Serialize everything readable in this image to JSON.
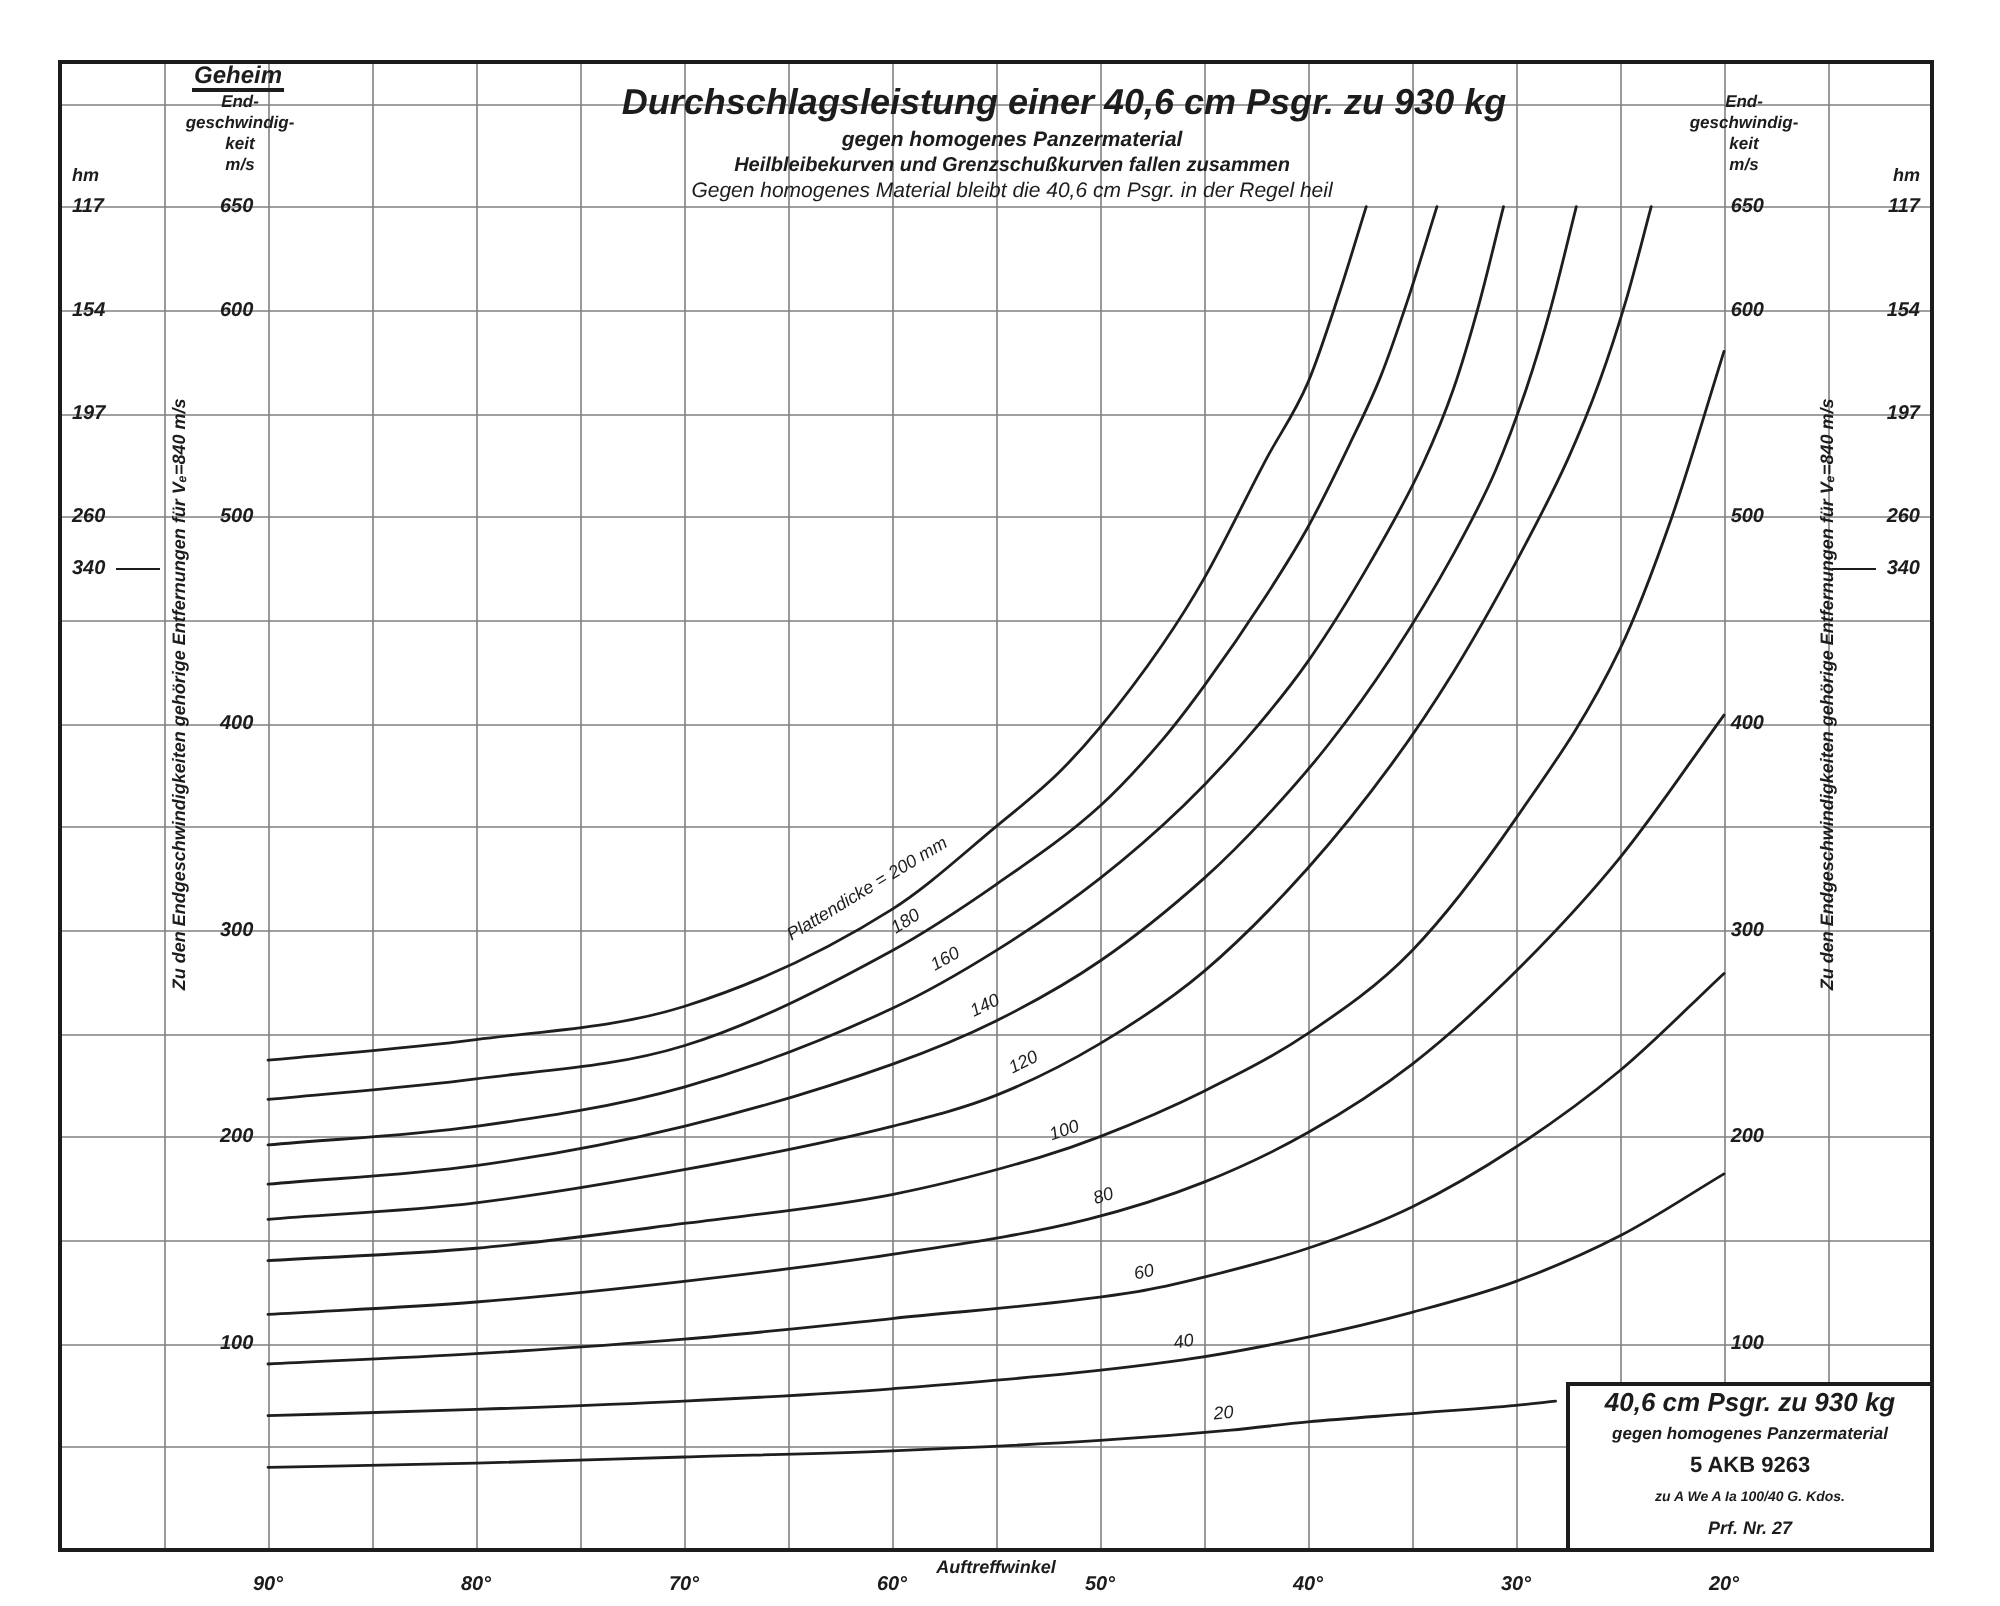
{
  "chart_data": {
    "type": "line",
    "title": "Durchschlagsleistung einer 40,6 cm Psgr. zu 930 kg",
    "subtitle": "gegen homogenes Panzermaterial\nHeilbleibekurven und Grenzschußkurven fallen zusammen\nGegen homogenes Material bleibt die 40,6 cm Psgr. in der Regel heil",
    "xlabel": "Auftreffwinkel",
    "ylabel": "End-\ngeschwindig-\nkeit\nm/s",
    "y2label": "End-\ngeschwindig-\nkeit\nm/s",
    "xlim": [
      100,
      10
    ],
    "xticks": [
      {
        "value": 95,
        "label": null
      },
      {
        "value": 90,
        "label": "90°"
      },
      {
        "value": 85,
        "label": null
      },
      {
        "value": 80,
        "label": "80°"
      },
      {
        "value": 75,
        "label": null
      },
      {
        "value": 70,
        "label": "70°"
      },
      {
        "value": 65,
        "label": null
      },
      {
        "value": 60,
        "label": "60°"
      },
      {
        "value": 55,
        "label": null
      },
      {
        "value": 50,
        "label": "50°"
      },
      {
        "value": 45,
        "label": null
      },
      {
        "value": 40,
        "label": "40°"
      },
      {
        "value": 35,
        "label": null
      },
      {
        "value": 30,
        "label": "30°"
      },
      {
        "value": 25,
        "label": null
      },
      {
        "value": 20,
        "label": "20°"
      },
      {
        "value": 15,
        "label": null
      }
    ],
    "ylim": [
      0,
      720
    ],
    "yticks": [
      {
        "value": 0,
        "label": null
      },
      {
        "value": 50,
        "label": null
      },
      100,
      {
        "value": 150,
        "label": null
      },
      200,
      {
        "value": 250,
        "label": null
      },
      300,
      {
        "value": 350,
        "label": null
      },
      400,
      {
        "value": 450,
        "label": null
      },
      500,
      {
        "value": 550,
        "label": null
      },
      600,
      650,
      {
        "value": 700,
        "label": null
      }
    ],
    "y2lim": [
      0,
      720
    ],
    "y2ticks": [
      100,
      200,
      300,
      400,
      500,
      600,
      650
    ],
    "grid": true,
    "marker": "none",
    "line_style": "solid",
    "series": [
      {
        "name": "Plattendicke = 200 mm",
        "color": "#1e1e1e",
        "x": [
          90,
          80,
          70,
          60,
          55,
          52,
          50,
          47,
          45,
          42,
          40,
          38.5,
          37.2
        ],
        "values": [
          237,
          247,
          263,
          310,
          350,
          376,
          398,
          438,
          470,
          528,
          565,
          608,
          650
        ]
      },
      {
        "name": "180",
        "color": "#1e1e1e",
        "x": [
          90,
          80,
          70,
          60,
          55,
          50,
          47,
          45,
          42,
          40,
          38,
          36.5,
          35.2,
          33.8
        ],
        "values": [
          218,
          228,
          244,
          290,
          322,
          360,
          392,
          418,
          462,
          495,
          535,
          568,
          605,
          650
        ]
      },
      {
        "name": "160",
        "color": "#1e1e1e",
        "x": [
          90,
          80,
          70,
          60,
          55,
          50,
          46,
          43,
          40,
          37,
          34.5,
          33,
          31.8,
          30.6
        ],
        "values": [
          196,
          205,
          224,
          262,
          290,
          325,
          360,
          392,
          430,
          478,
          525,
          562,
          602,
          650
        ]
      },
      {
        "name": "140",
        "color": "#1e1e1e",
        "x": [
          90,
          80,
          70,
          60,
          55,
          50,
          45,
          42,
          39,
          36,
          33,
          31,
          29.5,
          28.3,
          27.1
        ],
        "values": [
          177,
          186,
          205,
          235,
          256,
          285,
          325,
          355,
          390,
          432,
          482,
          522,
          562,
          602,
          650
        ]
      },
      {
        "name": "120",
        "color": "#1e1e1e",
        "x": [
          90,
          80,
          70,
          60,
          55,
          50,
          45,
          40,
          36,
          33,
          30,
          27.5,
          26,
          24.7,
          23.5
        ],
        "values": [
          160,
          168,
          184,
          205,
          220,
          245,
          280,
          330,
          380,
          425,
          478,
          528,
          565,
          605,
          650
        ]
      },
      {
        "name": "100",
        "color": "#1e1e1e",
        "x": [
          90,
          80,
          70,
          60,
          52.9,
          50,
          45,
          40,
          35,
          30,
          25,
          22.5,
          20
        ],
        "values": [
          140,
          146,
          158,
          172,
          190,
          200,
          222,
          250,
          290,
          354,
          436,
          500,
          580
        ]
      },
      {
        "name": "80",
        "color": "#1e1e1e",
        "x": [
          90,
          80,
          70,
          60,
          50.6,
          45,
          40,
          35,
          30,
          25,
          20
        ],
        "values": [
          114,
          120,
          130,
          143,
          160,
          178,
          202,
          235,
          280,
          335,
          404
        ]
      },
      {
        "name": "60",
        "color": "#1e1e1e",
        "x": [
          90,
          80,
          70,
          60,
          48.2,
          45,
          40,
          35,
          30,
          25,
          20
        ],
        "values": [
          90,
          95,
          102,
          112,
          125,
          132,
          146,
          166,
          195,
          232,
          279
        ]
      },
      {
        "name": "40",
        "color": "#1e1e1e",
        "x": [
          90,
          80,
          70,
          60,
          46,
          40,
          35,
          30,
          25,
          20
        ],
        "values": [
          65,
          68,
          72,
          78,
          92,
          103,
          115,
          130,
          152,
          182
        ]
      },
      {
        "name": "20",
        "color": "#1e1e1e",
        "x": [
          90,
          80,
          70,
          60,
          50,
          43.7,
          40,
          35,
          30,
          28.1
        ],
        "values": [
          40,
          42,
          45,
          48,
          53,
          58,
          62,
          66,
          70,
          72
        ]
      }
    ],
    "annotations": [
      "Geheim",
      "hm",
      "hm",
      "Zu den Endgeschwindigkeiten gehörige Entfernungen für Vₑ=840 m/s",
      "Zu den Endgeschwindigkeiten gehörige Entfernungen für Vₑ=840 m/s",
      "40,6 cm Psgr. zu 930 kg",
      "gegen homogenes Panzermaterial",
      "5 AKB 9263",
      "zu A We A Ia 100/40 G. Kdos.",
      "Prf. Nr. 27",
      "117",
      "154",
      "197",
      "260",
      "340",
      "117",
      "154",
      "197",
      "260",
      "340"
    ]
  }
}
